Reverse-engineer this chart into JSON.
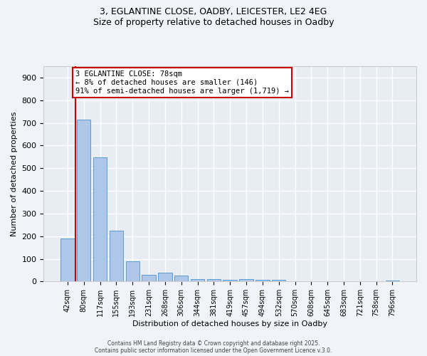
{
  "title_line1": "3, EGLANTINE CLOSE, OADBY, LEICESTER, LE2 4EG",
  "title_line2": "Size of property relative to detached houses in Oadby",
  "xlabel": "Distribution of detached houses by size in Oadby",
  "ylabel": "Number of detached properties",
  "categories": [
    "42sqm",
    "80sqm",
    "117sqm",
    "155sqm",
    "193sqm",
    "231sqm",
    "268sqm",
    "306sqm",
    "344sqm",
    "381sqm",
    "419sqm",
    "457sqm",
    "494sqm",
    "532sqm",
    "570sqm",
    "608sqm",
    "645sqm",
    "683sqm",
    "721sqm",
    "758sqm",
    "796sqm"
  ],
  "values": [
    190,
    715,
    547,
    225,
    90,
    30,
    39,
    26,
    12,
    10,
    8,
    12,
    7,
    7,
    0,
    0,
    0,
    0,
    0,
    0,
    3
  ],
  "bar_color": "#aec6e8",
  "bar_edge_color": "#5b9bd5",
  "background_color": "#e8edf4",
  "grid_color": "#ffffff",
  "vline_x": 0.5,
  "vline_color": "#cc0000",
  "annotation_text": "3 EGLANTINE CLOSE: 78sqm\n← 8% of detached houses are smaller (146)\n91% of semi-detached houses are larger (1,719) →",
  "annotation_box_color": "#cc0000",
  "ylim": [
    0,
    950
  ],
  "yticks": [
    0,
    100,
    200,
    300,
    400,
    500,
    600,
    700,
    800,
    900
  ],
  "footer_line1": "Contains HM Land Registry data © Crown copyright and database right 2025.",
  "footer_line2": "Contains public sector information licensed under the Open Government Licence v.3.0."
}
